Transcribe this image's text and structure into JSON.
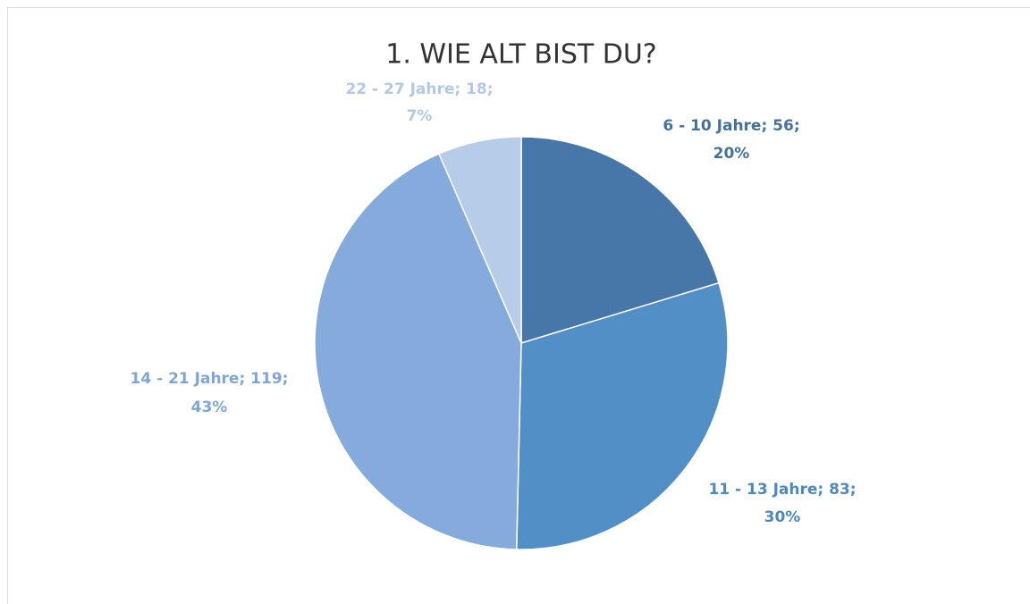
{
  "chart_data": {
    "type": "pie",
    "title": "1. WIE ALT BIST DU?",
    "values": [
      56,
      83,
      119,
      18
    ],
    "value_labels": [
      [
        "6 - 10 Jahre; 56;",
        "20%"
      ],
      [
        "11 - 13 Jahre; 83;",
        "30%"
      ],
      [
        "14 - 21 Jahre; 119;",
        "43%"
      ],
      [
        "22 - 27 Jahre; 18;",
        "7%"
      ]
    ],
    "colors": [
      "#4677a8",
      "#538fc7",
      "#84abdb",
      "#b6cce8"
    ],
    "label_colors": [
      "#44729f",
      "#4f88bf",
      "#7fa6d6",
      "#b3c8e4"
    ]
  }
}
